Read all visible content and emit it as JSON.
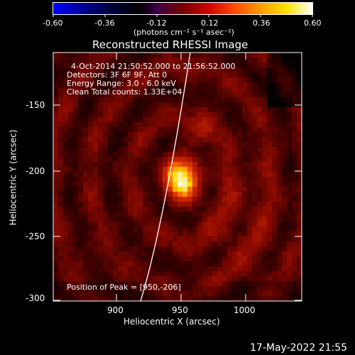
{
  "colorbar": {
    "ticks": [
      "-0.60",
      "-0.36",
      "-0.12",
      "0.12",
      "0.36",
      "0.60"
    ],
    "units": "(photons cm⁻² s⁻¹ asec⁻²)",
    "colors": [
      "#0000ff",
      "#000000",
      "#ff0000",
      "#ffff00",
      "#ffffff"
    ]
  },
  "plot": {
    "title": "Reconstructed RHESSI Image",
    "info_lines": [
      "4-Oct-2014 21:50:52.000 to 21:56:52.000",
      "Detectors: 3F 6F 9F, Att 0",
      "Energy Range: 3.0 - 6.0 keV",
      "Clean    Total counts: 1.33E+04"
    ],
    "peak_label": "Position of Peak = [950,-206]",
    "xlabel": "Heliocentric X (arcsec)",
    "ylabel": "Heliocentric Y (arcsec)",
    "xticks": [
      "900",
      "950",
      "1000"
    ],
    "yticks": [
      "-150",
      "-200",
      "-250",
      "-300"
    ],
    "xlim": [
      857,
      1040
    ],
    "ylim": [
      -300,
      -118
    ],
    "peak": [
      950,
      -206
    ]
  },
  "footer": {
    "timestamp": "17-May-2022 21:55"
  }
}
